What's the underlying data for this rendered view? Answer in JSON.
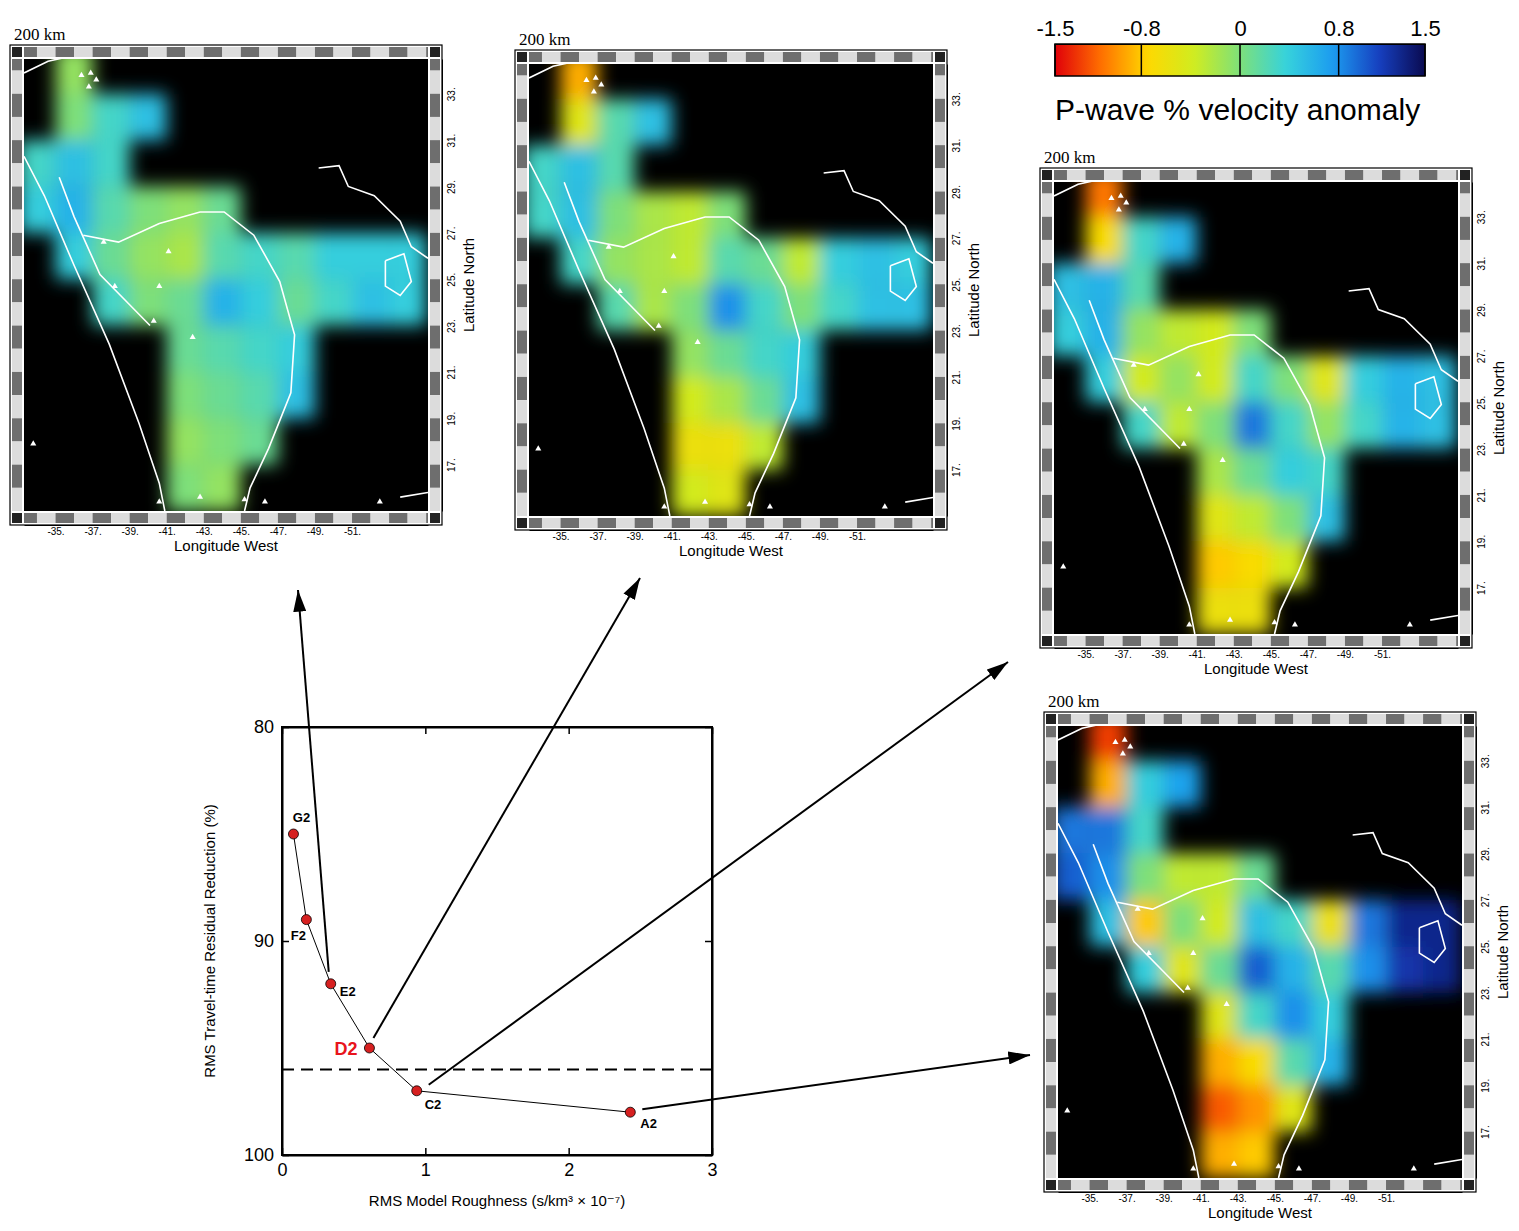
{
  "chart_data": [
    {
      "type": "line",
      "x": [
        0.08,
        0.17,
        0.34,
        0.61,
        0.94,
        2.43
      ],
      "values": [
        85,
        89,
        92,
        95,
        97,
        98
      ],
      "point_labels": [
        "G2",
        "F2",
        "E2",
        "D2",
        "C2",
        "A2"
      ],
      "colors": [
        "#000000",
        "#000000",
        "#000000",
        "#e8141c",
        "#000000",
        "#000000"
      ],
      "color": "#d62020",
      "marker": "circle",
      "line_style": "solid",
      "xlim": [
        0,
        3
      ],
      "xticks": [
        0,
        1,
        2,
        3
      ],
      "ylim": [
        100,
        80
      ],
      "yticks": [
        80,
        90,
        100
      ],
      "xlabel": "RMS Model Roughness (s/km³ × 10⁻⁷)",
      "ylabel": "RMS Travel-time Residual Reduction (%)",
      "threshold": {
        "value": 96,
        "line_style": "dashed"
      }
    },
    {
      "type": "heatmap",
      "model": "E2",
      "title": "200 km",
      "x": [
        -34,
        -36,
        -38,
        -40,
        -42,
        -44,
        -46,
        -48,
        -50,
        -52,
        -54
      ],
      "y": [
        34,
        32,
        30,
        28,
        26,
        24,
        22,
        20,
        18,
        16
      ],
      "cells": [
        [
          null,
          -0.1,
          null,
          null,
          null,
          null,
          null,
          null,
          null,
          null,
          null
        ],
        [
          null,
          0,
          0.3,
          0.5,
          null,
          null,
          null,
          null,
          null,
          null,
          null
        ],
        [
          0.3,
          0.5,
          0.3,
          null,
          null,
          null,
          null,
          null,
          null,
          null,
          null
        ],
        [
          0.4,
          0.6,
          0.2,
          0,
          -0.1,
          0.1,
          null,
          null,
          null,
          null,
          null
        ],
        [
          null,
          0.4,
          0.1,
          -0.1,
          -0.2,
          0.2,
          0.3,
          0.2,
          0.4,
          0.4,
          0.4
        ],
        [
          null,
          null,
          0.3,
          0,
          0.1,
          0.6,
          0.4,
          0.1,
          0.3,
          0.5,
          0.4
        ],
        [
          null,
          null,
          null,
          null,
          0.1,
          0.2,
          0.3,
          0.4,
          null,
          null,
          null
        ],
        [
          null,
          null,
          null,
          null,
          0,
          0.1,
          0.2,
          0.5,
          null,
          null,
          null
        ],
        [
          null,
          null,
          null,
          null,
          -0.1,
          0,
          0.1,
          null,
          null,
          null,
          null
        ],
        [
          null,
          null,
          null,
          null,
          0,
          -0.1,
          null,
          null,
          null,
          null,
          null
        ]
      ],
      "xlim": [
        -33.3,
        -55.1
      ],
      "xticks": [
        {
          "value": -35,
          "label": "-35."
        },
        {
          "value": -37,
          "label": "-37."
        },
        {
          "value": -39,
          "label": "-39."
        },
        {
          "value": -41,
          "label": "-41."
        },
        {
          "value": -43,
          "label": "-43."
        },
        {
          "value": -45,
          "label": "-45."
        },
        {
          "value": -47,
          "label": "-47."
        },
        {
          "value": -49,
          "label": "-49."
        },
        {
          "value": -51,
          "label": "-51."
        }
      ],
      "ylim": [
        15,
        34.5
      ],
      "yticks": [
        {
          "value": 17,
          "label": "17."
        },
        {
          "value": 19,
          "label": "19."
        },
        {
          "value": 21,
          "label": "21."
        },
        {
          "value": 23,
          "label": "23."
        },
        {
          "value": 25,
          "label": "25."
        },
        {
          "value": 27,
          "label": "27."
        },
        {
          "value": 29,
          "label": "29."
        },
        {
          "value": 31,
          "label": "31."
        },
        {
          "value": 33,
          "label": "33."
        }
      ],
      "xlabel": "Longitude West",
      "ylabel": "Latitude North"
    },
    {
      "type": "heatmap",
      "model": "D2",
      "title": "200 km",
      "x": [
        -34,
        -36,
        -38,
        -40,
        -42,
        -44,
        -46,
        -48,
        -50,
        -52,
        -54
      ],
      "y": [
        34,
        32,
        30,
        28,
        26,
        24,
        22,
        20,
        18,
        16
      ],
      "cells": [
        [
          null,
          -0.9,
          null,
          null,
          null,
          null,
          null,
          null,
          null,
          null,
          null
        ],
        [
          null,
          -0.5,
          0.2,
          0.5,
          null,
          null,
          null,
          null,
          null,
          null,
          null
        ],
        [
          0.3,
          0.5,
          0.2,
          null,
          null,
          null,
          null,
          null,
          null,
          null,
          null
        ],
        [
          0.3,
          0.5,
          0,
          -0.2,
          -0.3,
          0,
          null,
          null,
          null,
          null,
          null
        ],
        [
          null,
          0.3,
          -0.1,
          -0.2,
          -0.3,
          0.2,
          0.1,
          -0.3,
          0.4,
          0.5,
          0.4
        ],
        [
          null,
          null,
          0.2,
          -0.2,
          0,
          0.8,
          0.3,
          0,
          0.3,
          0.5,
          0.5
        ],
        [
          null,
          null,
          null,
          null,
          -0.1,
          0.1,
          0.3,
          0.4,
          null,
          null,
          null
        ],
        [
          null,
          null,
          null,
          null,
          -0.4,
          -0.2,
          0.1,
          0.5,
          null,
          null,
          null
        ],
        [
          null,
          null,
          null,
          null,
          -0.6,
          -0.6,
          -0.3,
          null,
          null,
          null,
          null
        ],
        [
          null,
          null,
          null,
          null,
          -0.4,
          -0.5,
          null,
          null,
          null,
          null,
          null
        ]
      ],
      "xlim": [
        -33.3,
        -55.1
      ],
      "xticks": [
        {
          "value": -35,
          "label": "-35."
        },
        {
          "value": -37,
          "label": "-37."
        },
        {
          "value": -39,
          "label": "-39."
        },
        {
          "value": -41,
          "label": "-41."
        },
        {
          "value": -43,
          "label": "-43."
        },
        {
          "value": -45,
          "label": "-45."
        },
        {
          "value": -47,
          "label": "-47."
        },
        {
          "value": -49,
          "label": "-49."
        },
        {
          "value": -51,
          "label": "-51."
        }
      ],
      "ylim": [
        15,
        34.5
      ],
      "yticks": [
        {
          "value": 17,
          "label": "17."
        },
        {
          "value": 19,
          "label": "19."
        },
        {
          "value": 21,
          "label": "21."
        },
        {
          "value": 23,
          "label": "23."
        },
        {
          "value": 25,
          "label": "25."
        },
        {
          "value": 27,
          "label": "27."
        },
        {
          "value": 29,
          "label": "29."
        },
        {
          "value": 31,
          "label": "31."
        },
        {
          "value": 33,
          "label": "33."
        }
      ],
      "xlabel": "Longitude West",
      "ylabel": "Latitude North"
    },
    {
      "type": "heatmap",
      "model": "C2",
      "title": "200 km",
      "x": [
        -34,
        -36,
        -38,
        -40,
        -42,
        -44,
        -46,
        -48,
        -50,
        -52,
        -54
      ],
      "y": [
        34,
        32,
        30,
        28,
        26,
        24,
        22,
        20,
        18,
        16
      ],
      "cells": [
        [
          null,
          -1.1,
          null,
          null,
          null,
          null,
          null,
          null,
          null,
          null,
          null
        ],
        [
          null,
          -0.7,
          0.3,
          0.6,
          null,
          null,
          null,
          null,
          null,
          null,
          null
        ],
        [
          0.5,
          0.6,
          0.2,
          null,
          null,
          null,
          null,
          null,
          null,
          null,
          null
        ],
        [
          0.4,
          0.6,
          -0.1,
          -0.3,
          -0.4,
          0,
          null,
          null,
          null,
          null,
          null
        ],
        [
          null,
          0.4,
          -0.4,
          -0.1,
          -0.4,
          0.3,
          0,
          -0.5,
          0.4,
          0.6,
          0.5
        ],
        [
          null,
          null,
          0.3,
          -0.3,
          0,
          0.9,
          0.3,
          -0.1,
          0.3,
          0.6,
          0.5
        ],
        [
          null,
          null,
          null,
          null,
          -0.2,
          0.1,
          0.4,
          0.3,
          null,
          null,
          null
        ],
        [
          null,
          null,
          null,
          null,
          -0.5,
          -0.3,
          0,
          0.5,
          null,
          null,
          null
        ],
        [
          null,
          null,
          null,
          null,
          -0.8,
          -0.7,
          -0.4,
          null,
          null,
          null,
          null
        ],
        [
          null,
          null,
          null,
          null,
          -0.6,
          -0.6,
          null,
          null,
          null,
          null,
          null
        ]
      ],
      "xlim": [
        -33.3,
        -55.1
      ],
      "xticks": [
        {
          "value": -35,
          "label": "-35."
        },
        {
          "value": -37,
          "label": "-37."
        },
        {
          "value": -39,
          "label": "-39."
        },
        {
          "value": -41,
          "label": "-41."
        },
        {
          "value": -43,
          "label": "-43."
        },
        {
          "value": -45,
          "label": "-45."
        },
        {
          "value": -47,
          "label": "-47."
        },
        {
          "value": -49,
          "label": "-49."
        },
        {
          "value": -51,
          "label": "-51."
        }
      ],
      "ylim": [
        15,
        34.5
      ],
      "yticks": [
        {
          "value": 17,
          "label": "17."
        },
        {
          "value": 19,
          "label": "19."
        },
        {
          "value": 21,
          "label": "21."
        },
        {
          "value": 23,
          "label": "23."
        },
        {
          "value": 25,
          "label": "25."
        },
        {
          "value": 27,
          "label": "27."
        },
        {
          "value": 29,
          "label": "29."
        },
        {
          "value": 31,
          "label": "31."
        },
        {
          "value": 33,
          "label": "33."
        }
      ],
      "xlabel": "Longitude West",
      "ylabel": "Latitude North"
    },
    {
      "type": "heatmap",
      "model": "A2",
      "title": "200 km",
      "x": [
        -34,
        -36,
        -38,
        -40,
        -42,
        -44,
        -46,
        -48,
        -50,
        -52,
        -54
      ],
      "y": [
        34,
        32,
        30,
        28,
        26,
        24,
        22,
        20,
        18,
        16
      ],
      "cells": [
        [
          null,
          -1.3,
          null,
          null,
          null,
          null,
          null,
          null,
          null,
          null,
          null
        ],
        [
          null,
          -0.9,
          0.4,
          0.7,
          null,
          null,
          null,
          null,
          null,
          null,
          null
        ],
        [
          0.9,
          0.9,
          0.3,
          null,
          null,
          null,
          null,
          null,
          null,
          null,
          null
        ],
        [
          1.0,
          0.8,
          0,
          -0.3,
          -0.3,
          0.1,
          null,
          null,
          null,
          null,
          null
        ],
        [
          null,
          0.5,
          -0.8,
          0,
          -0.4,
          0.5,
          0.3,
          -0.6,
          0.9,
          1.3,
          1.3
        ],
        [
          null,
          null,
          0.4,
          -0.5,
          0.1,
          1.0,
          0.6,
          0.2,
          0.8,
          1.2,
          1.3
        ],
        [
          null,
          null,
          null,
          null,
          -0.5,
          0.3,
          0.8,
          0.4,
          null,
          null,
          null
        ],
        [
          null,
          null,
          null,
          null,
          -0.9,
          -0.7,
          0.2,
          0.6,
          null,
          null,
          null
        ],
        [
          null,
          null,
          null,
          null,
          -1.2,
          -1.0,
          -0.5,
          null,
          null,
          null,
          null
        ],
        [
          null,
          null,
          null,
          null,
          -0.9,
          -0.8,
          null,
          null,
          null,
          null,
          null
        ]
      ],
      "xlim": [
        -33.3,
        -55.1
      ],
      "xticks": [
        {
          "value": -35,
          "label": "-35."
        },
        {
          "value": -37,
          "label": "-37."
        },
        {
          "value": -39,
          "label": "-39."
        },
        {
          "value": -41,
          "label": "-41."
        },
        {
          "value": -43,
          "label": "-43."
        },
        {
          "value": -45,
          "label": "-45."
        },
        {
          "value": -47,
          "label": "-47."
        },
        {
          "value": -49,
          "label": "-49."
        },
        {
          "value": -51,
          "label": "-51."
        }
      ],
      "ylim": [
        15,
        34.5
      ],
      "yticks": [
        {
          "value": 17,
          "label": "17."
        },
        {
          "value": 19,
          "label": "19."
        },
        {
          "value": 21,
          "label": "21."
        },
        {
          "value": 23,
          "label": "23."
        },
        {
          "value": 25,
          "label": "25."
        },
        {
          "value": 27,
          "label": "27."
        },
        {
          "value": 29,
          "label": "29."
        },
        {
          "value": 31,
          "label": "31."
        },
        {
          "value": 33,
          "label": "33."
        }
      ],
      "xlabel": "Longitude West",
      "ylabel": "Latitude North"
    }
  ],
  "colorbar": {
    "range": [
      -1.5,
      1.5
    ],
    "ticks": [
      -1.5,
      -0.8,
      0,
      0.8,
      1.5
    ],
    "label": "P-wave % velocity anomaly",
    "colors": [
      "#e0000a",
      "#ff7000",
      "#ffd800",
      "#d0ec20",
      "#7ee07a",
      "#36d2dc",
      "#1c9cf0",
      "#1640c0",
      "#0a0a50"
    ]
  },
  "map": {
    "coastlines": [
      [
        [
          -33.3,
          33.9
        ],
        [
          -34.6,
          34.4
        ],
        [
          -35.7,
          34.6
        ]
      ],
      [
        [
          -33.3,
          30.3
        ],
        [
          -34.4,
          28.6
        ],
        [
          -36.0,
          25.6
        ],
        [
          -37.9,
          22.2
        ],
        [
          -39.5,
          18.8
        ],
        [
          -40.6,
          16.2
        ],
        [
          -40.9,
          15.0
        ]
      ],
      [
        [
          -35.2,
          29.4
        ],
        [
          -36.0,
          27.7
        ],
        [
          -37.4,
          25.2
        ],
        [
          -39.0,
          23.9
        ],
        [
          -40.1,
          23.0
        ]
      ],
      [
        [
          -36.5,
          26.9
        ],
        [
          -38.4,
          26.6
        ],
        [
          -40.6,
          27.4
        ],
        [
          -42.8,
          27.9
        ],
        [
          -44.1,
          27.9
        ],
        [
          -45.7,
          26.9
        ],
        [
          -47.1,
          24.9
        ],
        [
          -47.9,
          22.6
        ],
        [
          -47.7,
          20.1
        ],
        [
          -46.5,
          17.7
        ],
        [
          -45.5,
          16.0
        ],
        [
          -45.2,
          15.0
        ]
      ],
      [
        [
          -49.2,
          29.8
        ],
        [
          -50.3,
          29.9
        ],
        [
          -50.8,
          29.0
        ],
        [
          -52.2,
          28.6
        ],
        [
          -53.6,
          27.5
        ],
        [
          -54.2,
          26.4
        ],
        [
          -55.1,
          25.9
        ]
      ],
      [
        [
          -52.8,
          25.8
        ],
        [
          -53.8,
          26.1
        ],
        [
          -54.2,
          24.9
        ],
        [
          -53.6,
          24.3
        ],
        [
          -52.8,
          24.7
        ],
        [
          -52.8,
          25.8
        ]
      ],
      [
        [
          -53.6,
          15.6
        ],
        [
          -55.1,
          15.8
        ]
      ]
    ],
    "stations": [
      [
        -36.4,
        33.8
      ],
      [
        -36.9,
        33.9
      ],
      [
        -37.2,
        33.6
      ],
      [
        -36.8,
        33.3
      ],
      [
        -37.6,
        26.6
      ],
      [
        -38.2,
        24.7
      ],
      [
        -40.6,
        24.7
      ],
      [
        -41.1,
        26.2
      ],
      [
        -40.3,
        23.2
      ],
      [
        -42.4,
        22.5
      ],
      [
        -33.8,
        17.9
      ],
      [
        -40.6,
        15.4
      ],
      [
        -42.8,
        15.6
      ],
      [
        -45.2,
        15.5
      ],
      [
        -46.3,
        15.4
      ],
      [
        -52.5,
        15.4
      ]
    ]
  }
}
